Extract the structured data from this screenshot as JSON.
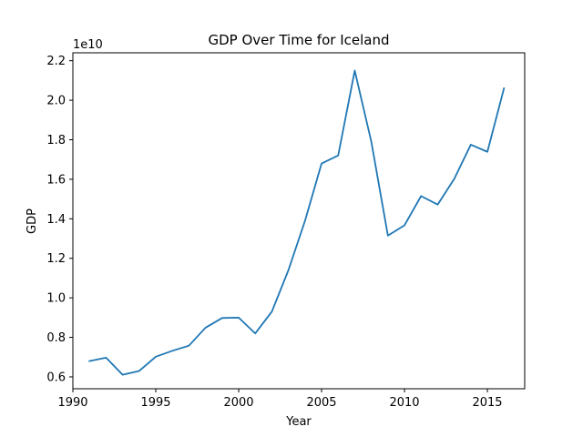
{
  "chart_data": {
    "type": "line",
    "title": "GDP Over Time for Iceland",
    "xlabel": "Year",
    "ylabel": "GDP",
    "y_scale_factor_label": "1e10",
    "xlim": [
      1990,
      2017.25
    ],
    "ylim": [
      5.4,
      22.4
    ],
    "x_ticks": [
      1990,
      1995,
      2000,
      2005,
      2010,
      2015
    ],
    "y_ticks": [
      0.6,
      0.8,
      1.0,
      1.2,
      1.4,
      1.6,
      1.8,
      2.0,
      2.2
    ],
    "y_tick_labels": [
      "0.6",
      "0.8",
      "1.0",
      "1.2",
      "1.4",
      "1.6",
      "1.8",
      "2.0",
      "2.2"
    ],
    "grid": false,
    "legend": false,
    "series": [
      {
        "color": "#1f77b4",
        "x": [
          1991,
          1992,
          1993,
          1994,
          1995,
          1996,
          1997,
          1998,
          1999,
          2000,
          2001,
          2002,
          2003,
          2004,
          2005,
          2006,
          2007,
          2008,
          2009,
          2010,
          2011,
          2012,
          2013,
          2014,
          2015,
          2016
        ],
        "y": [
          6.8,
          6.97,
          6.11,
          6.3,
          7.02,
          7.32,
          7.58,
          8.49,
          8.98,
          9.0,
          8.2,
          9.3,
          11.4,
          13.9,
          16.8,
          17.2,
          21.5,
          17.9,
          13.15,
          13.67,
          15.15,
          14.72,
          16.02,
          17.75,
          17.39,
          20.6
        ]
      }
    ]
  }
}
